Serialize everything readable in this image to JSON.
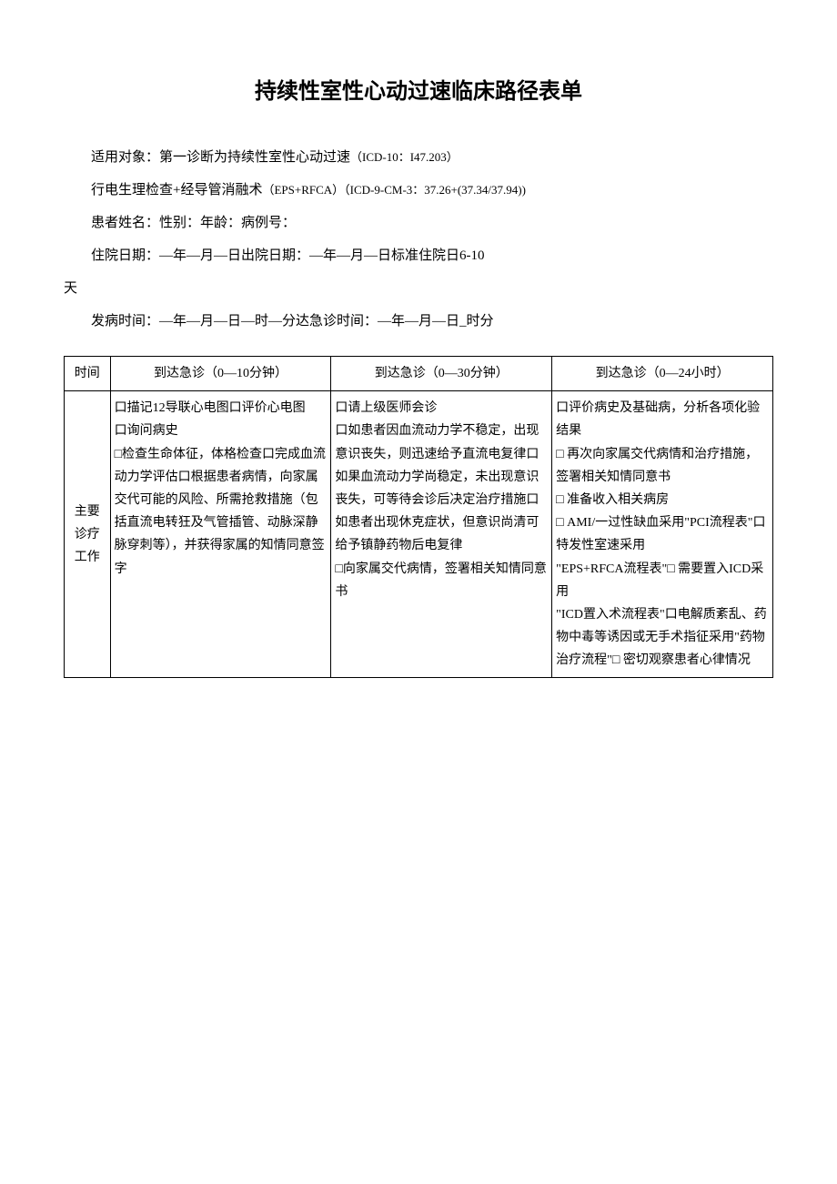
{
  "title": "持续性室性心动过速临床路径表单",
  "info": {
    "line1_prefix": "适用对象：第一诊断为持续性室性心动过速",
    "line1_suffix": "（ICD-10：I47.203）",
    "line2_prefix": "行电生理检查+经导管消融术",
    "line2_suffix": "（EPS+RFCA）（ICD-9-CM-3：37.26+(37.34/37.94))",
    "line3": "患者姓名：性别：年龄：病例号：",
    "line4": "住院日期：—年—月—日出院日期：—年—月—日标准住院日6-10",
    "line4_cont": "天",
    "line5": "发病时间：—年—月—日—时—分达急诊时间：—年—月—日_时分"
  },
  "table": {
    "header_col1": "时间",
    "header_col2": "到达急诊（0—10分钟）",
    "header_col3": "到达急诊（0—30分钟）",
    "header_col4": "到达急诊（0—24小时）",
    "row1_label": "主要诊疗工作",
    "row1_col2": "口描记12导联心电图口评价心电图\n口询问病史\n□检查生命体征，体格检查口完成血流动力学评估口根据患者病情，向家属交代可能的风险、所需抢救措施（包括直流电转狂及气管插管、动脉深静脉穿刺等），并获得家属的知情同意签字",
    "row1_col3": "口请上级医师会诊\n口如患者因血流动力学不稳定，出现意识丧失，则迅速给予直流电复律口如果血流动力学尚稳定，未出现意识丧失，可等待会诊后决定治疗措施口如患者出现休克症状，但意识尚清可给予镇静药物后电复律\n□向家属交代病情，签署相关知情同意书",
    "row1_col4": "口评价病史及基础病，分析各项化验结果\n□ 再次向家属交代病情和治疗措施，签署相关知情同意书\n□ 准备收入相关病房\n□ AMI/一过性缺血采用\"PCI流程表\"口特发性室速采用\n\"EPS+RFCA流程表\"□ 需要置入ICD采用\n\"ICD置入术流程表\"口电解质紊乱、药物中毒等诱因或无手术指征采用\"药物治疗流程\"□ 密切观察患者心律情况"
  }
}
